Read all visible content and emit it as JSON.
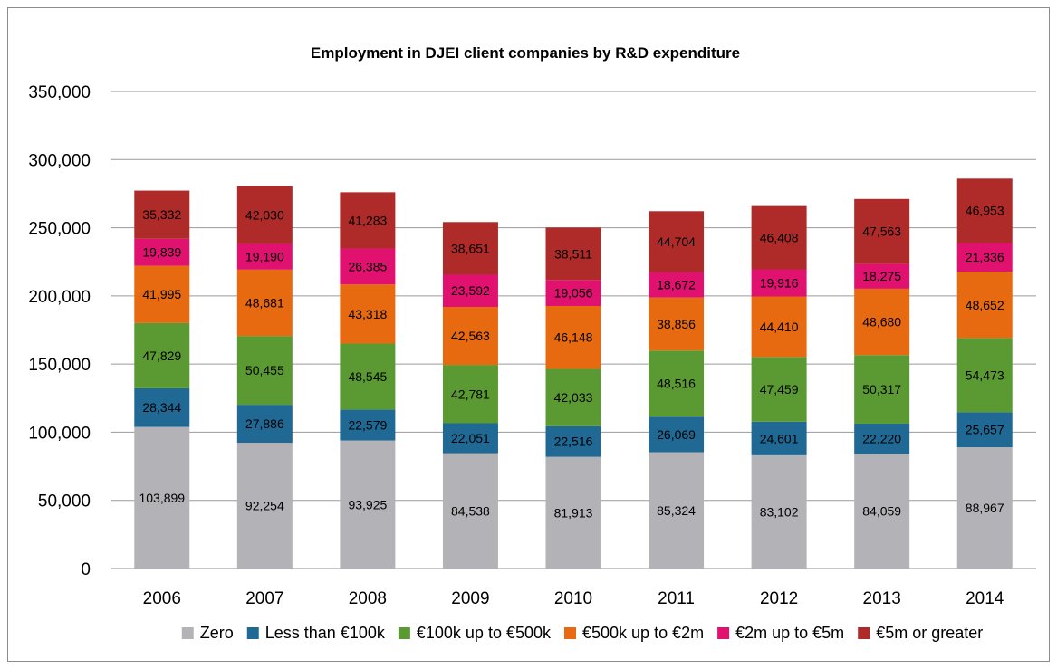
{
  "chart_data": {
    "type": "bar",
    "stacked": true,
    "title": "Employment in DJEI client companies by R&D expenditure",
    "xlabel": "",
    "ylabel": "",
    "ylim": [
      0,
      350000
    ],
    "y_ticks": [
      "0",
      "50,000",
      "100,000",
      "150,000",
      "200,000",
      "250,000",
      "300,000",
      "350,000"
    ],
    "grid": true,
    "legend_position": "bottom",
    "categories": [
      "2006",
      "2007",
      "2008",
      "2009",
      "2010",
      "2011",
      "2012",
      "2013",
      "2014"
    ],
    "series": [
      {
        "name": "Zero",
        "color": "#b3b3b7",
        "values": [
          103899,
          92254,
          93925,
          84538,
          81913,
          85324,
          83102,
          84059,
          88967
        ],
        "labels": [
          "103,899",
          "92,254",
          "93,925",
          "84,538",
          "81,913",
          "85,324",
          "83,102",
          "84,059",
          "88,967"
        ]
      },
      {
        "name": "Less than €100k",
        "color": "#1f6994",
        "values": [
          28344,
          27886,
          22579,
          22051,
          22516,
          26069,
          24601,
          22220,
          25657
        ],
        "labels": [
          "28,344",
          "27,886",
          "22,579",
          "22,051",
          "22,516",
          "26,069",
          "24,601",
          "22,220",
          "25,657"
        ]
      },
      {
        "name": "€100k up to €500k",
        "color": "#5b9a32",
        "values": [
          47829,
          50455,
          48545,
          42781,
          42033,
          48516,
          47459,
          50317,
          54473
        ],
        "labels": [
          "47,829",
          "50,455",
          "48,545",
          "42,781",
          "42,033",
          "48,516",
          "47,459",
          "50,317",
          "54,473"
        ]
      },
      {
        "name": "€500k up to €2m",
        "color": "#e86a10",
        "values": [
          41995,
          48681,
          43318,
          42563,
          46148,
          38856,
          44410,
          48680,
          48652
        ],
        "labels": [
          "41,995",
          "48,681",
          "43,318",
          "42,563",
          "46,148",
          "38,856",
          "44,410",
          "48,680",
          "48,652"
        ]
      },
      {
        "name": "€2m up to €5m",
        "color": "#e0116f",
        "values": [
          19839,
          19190,
          26385,
          23592,
          19056,
          18672,
          19916,
          18275,
          21336
        ],
        "labels": [
          "19,839",
          "19,190",
          "26,385",
          "23,592",
          "19,056",
          "18,672",
          "19,916",
          "18,275",
          "21,336"
        ]
      },
      {
        "name": "€5m or greater",
        "color": "#ae2b29",
        "values": [
          35332,
          42030,
          41283,
          38651,
          38511,
          44704,
          46408,
          47563,
          46953
        ],
        "labels": [
          "35,332",
          "42,030",
          "41,283",
          "38,651",
          "38,511",
          "44,704",
          "46,408",
          "47,563",
          "46,953"
        ]
      }
    ]
  }
}
